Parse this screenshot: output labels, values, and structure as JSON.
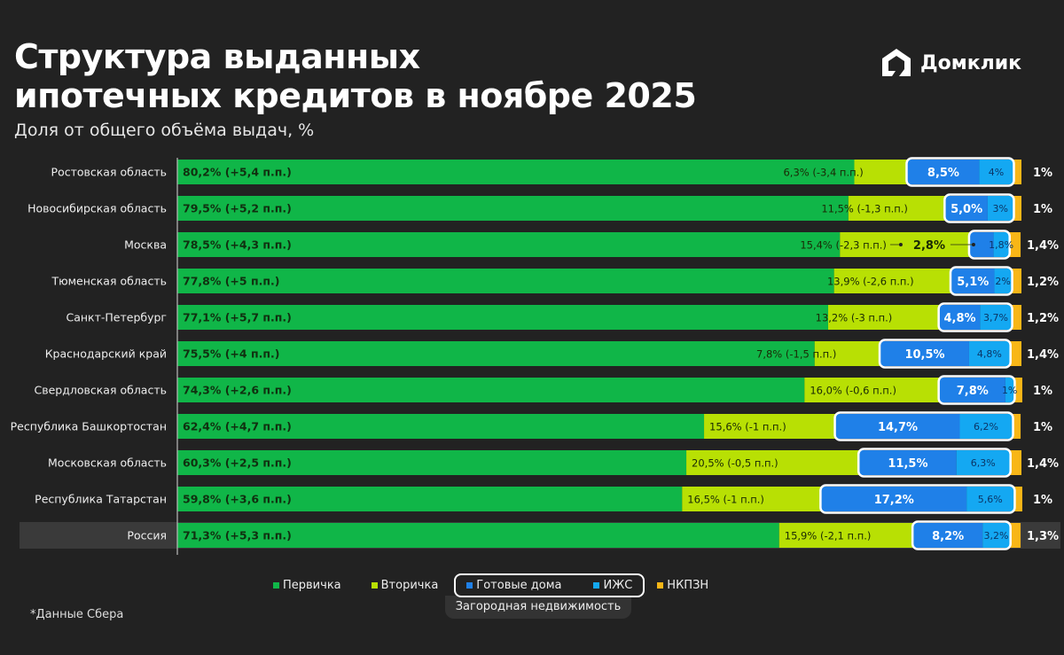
{
  "header": {
    "title_line1": "Структура выданных",
    "title_line2": "ипотечных кредитов в ноябре 2025",
    "subtitle": "Доля от общего объёма выдач, %",
    "logo_text": "Домклик"
  },
  "footnote": "*Данные Сбера",
  "legend": {
    "primary": "Первичка",
    "secondary": "Вторичка",
    "ready": "Готовые дома",
    "izhs": "ИЖС",
    "nkpzn": "НКПЗН",
    "group_caption": "Загородная недвижимость"
  },
  "colors": {
    "primary": "#10b648",
    "secondary": "#b8e004",
    "ready": "#1f80e8",
    "izhs": "#14a8f2",
    "nkpzn": "#f8b617",
    "background": "#222222"
  },
  "chart_data": {
    "type": "bar",
    "orientation": "horizontal-stacked",
    "xlim": [
      0,
      100
    ],
    "series_names": [
      "Первичка",
      "Вторичка",
      "Готовые дома",
      "ИЖС",
      "НКПЗН"
    ],
    "rows": [
      {
        "region": "Ростовская область",
        "primary": 80.2,
        "primary_label": "80,2% (+5,4 п.п.)",
        "secondary": 6.3,
        "secondary_label": "6,3% (-3,4 п.п.)",
        "ready": 8.5,
        "ready_label": "8,5%",
        "izhs": 4,
        "izhs_label": "4%",
        "nkpzn": 1,
        "nkpzn_label": "1%"
      },
      {
        "region": "Новосибирская область",
        "primary": 79.5,
        "primary_label": "79,5% (+5,2 п.п.)",
        "secondary": 11.5,
        "secondary_label": "11,5% (-1,3 п.п.)",
        "ready": 5.0,
        "ready_label": "5,0%",
        "izhs": 3,
        "izhs_label": "3%",
        "nkpzn": 1,
        "nkpzn_label": "1%"
      },
      {
        "region": "Москва",
        "primary": 78.5,
        "primary_label": "78,5% (+4,3 п.п.)",
        "secondary": 15.4,
        "secondary_label": "15,4% (-2,3 п.п.)",
        "ready": 2.8,
        "ready_label": "2,8%",
        "izhs": 1.8,
        "izhs_label": "1,8%",
        "nkpzn": 1.4,
        "nkpzn_label": "1,4%"
      },
      {
        "region": "Тюменская область",
        "primary": 77.8,
        "primary_label": "77,8% (+5 п.п.)",
        "secondary": 13.9,
        "secondary_label": "13,9% (-2,6 п.п.)",
        "ready": 5.1,
        "ready_label": "5,1%",
        "izhs": 2,
        "izhs_label": "2%",
        "nkpzn": 1.2,
        "nkpzn_label": "1,2%"
      },
      {
        "region": "Санкт-Петербург",
        "primary": 77.1,
        "primary_label": "77,1% (+5,7 п.п.)",
        "secondary": 13.2,
        "secondary_label": "13,2% (-3 п.п.)",
        "ready": 4.8,
        "ready_label": "4,8%",
        "izhs": 3.7,
        "izhs_label": "3,7%",
        "nkpzn": 1.2,
        "nkpzn_label": "1,2%"
      },
      {
        "region": "Краснодарский край",
        "primary": 75.5,
        "primary_label": "75,5% (+4 п.п.)",
        "secondary": 7.8,
        "secondary_label": "7,8% (-1,5 п.п.)",
        "ready": 10.5,
        "ready_label": "10,5%",
        "izhs": 4.8,
        "izhs_label": "4,8%",
        "nkpzn": 1.4,
        "nkpzn_label": "1,4%"
      },
      {
        "region": "Свердловская область",
        "primary": 74.3,
        "primary_label": "74,3% (+2,6 п.п.)",
        "secondary": 16.0,
        "secondary_label": "16,0% (-0,6 п.п.)",
        "ready": 7.8,
        "ready_label": "7,8%",
        "izhs": 1,
        "izhs_label": "1%",
        "nkpzn": 1,
        "nkpzn_label": "1%"
      },
      {
        "region": "Республика Башкортостан",
        "primary": 62.4,
        "primary_label": "62,4% (+4,7 п.п.)",
        "secondary": 15.6,
        "secondary_label": "15,6% (-1 п.п.)",
        "ready": 14.7,
        "ready_label": "14,7%",
        "izhs": 6.2,
        "izhs_label": "6,2%",
        "nkpzn": 1,
        "nkpzn_label": "1%"
      },
      {
        "region": "Московская область",
        "primary": 60.3,
        "primary_label": "60,3% (+2,5 п.п.)",
        "secondary": 20.5,
        "secondary_label": "20,5% (-0,5 п.п.)",
        "ready": 11.5,
        "ready_label": "11,5%",
        "izhs": 6.3,
        "izhs_label": "6,3%",
        "nkpzn": 1.4,
        "nkpzn_label": "1,4%"
      },
      {
        "region": "Республика Татарстан",
        "primary": 59.8,
        "primary_label": "59,8% (+3,6 п.п.)",
        "secondary": 16.5,
        "secondary_label": "16,5% (-1 п.п.)",
        "ready": 17.2,
        "ready_label": "17,2%",
        "izhs": 5.6,
        "izhs_label": "5,6%",
        "nkpzn": 1,
        "nkpzn_label": "1%"
      },
      {
        "region": "Россия",
        "primary": 71.3,
        "primary_label": "71,3% (+5,3 п.п.)",
        "secondary": 15.9,
        "secondary_label": "15,9% (-2,1 п.п.)",
        "ready": 8.2,
        "ready_label": "8,2%",
        "izhs": 3.2,
        "izhs_label": "3,2%",
        "nkpzn": 1.3,
        "nkpzn_label": "1,3%",
        "highlight": true
      }
    ]
  }
}
